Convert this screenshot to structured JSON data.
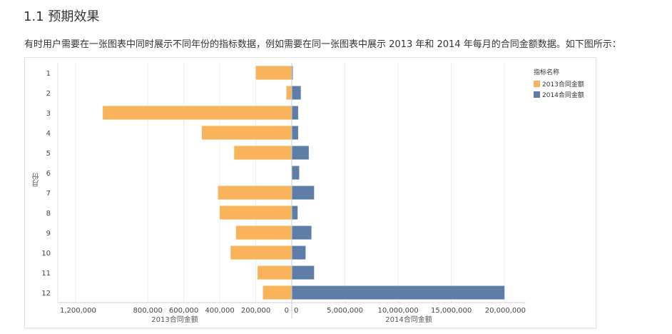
{
  "heading": "1.1 预期效果",
  "description": "有时用户需要在一张图表中同时展示不同年份的指标数据，例如需要在同一张图表中展示 2013 年和 2014 年每月的合同金额数据。如下图所示：",
  "legend": {
    "title": "指标名称",
    "items": [
      {
        "label": "2013合同金额",
        "color": "#F9B35A"
      },
      {
        "label": "2014合同金额",
        "color": "#5E7EA8"
      }
    ]
  },
  "chart_data": {
    "type": "bar",
    "orientation": "horizontal-butterfly",
    "ylabel": "月份",
    "categories": [
      "1",
      "2",
      "3",
      "4",
      "5",
      "6",
      "7",
      "8",
      "9",
      "10",
      "11",
      "12"
    ],
    "left_panel": {
      "xlabel": "2013合同金额",
      "xlim": [
        0,
        1300000
      ],
      "ticks": [
        0,
        200000,
        400000,
        600000,
        800000,
        1200000
      ],
      "tick_labels": [
        "0",
        "200,000",
        "400,000",
        "600,000",
        "800,000",
        "1,200,000"
      ],
      "series": {
        "name": "2013合同金额",
        "color": "#F9B35A",
        "values": [
          200000,
          30000,
          1050000,
          500000,
          320000,
          0,
          410000,
          400000,
          310000,
          340000,
          190000,
          160000
        ]
      }
    },
    "right_panel": {
      "xlabel": "2014合同金额",
      "xlim": [
        0,
        22000000
      ],
      "ticks": [
        0,
        5000000,
        10000000,
        15000000,
        20000000
      ],
      "tick_labels": [
        "0",
        "5,000,000",
        "10,000,000",
        "15,000,000",
        "20,000,000"
      ],
      "series": {
        "name": "2014合同金额",
        "color": "#5E7EA8",
        "values": [
          100000,
          850000,
          600000,
          600000,
          1600000,
          700000,
          2100000,
          550000,
          1850000,
          1300000,
          2100000,
          20000000
        ]
      }
    }
  }
}
